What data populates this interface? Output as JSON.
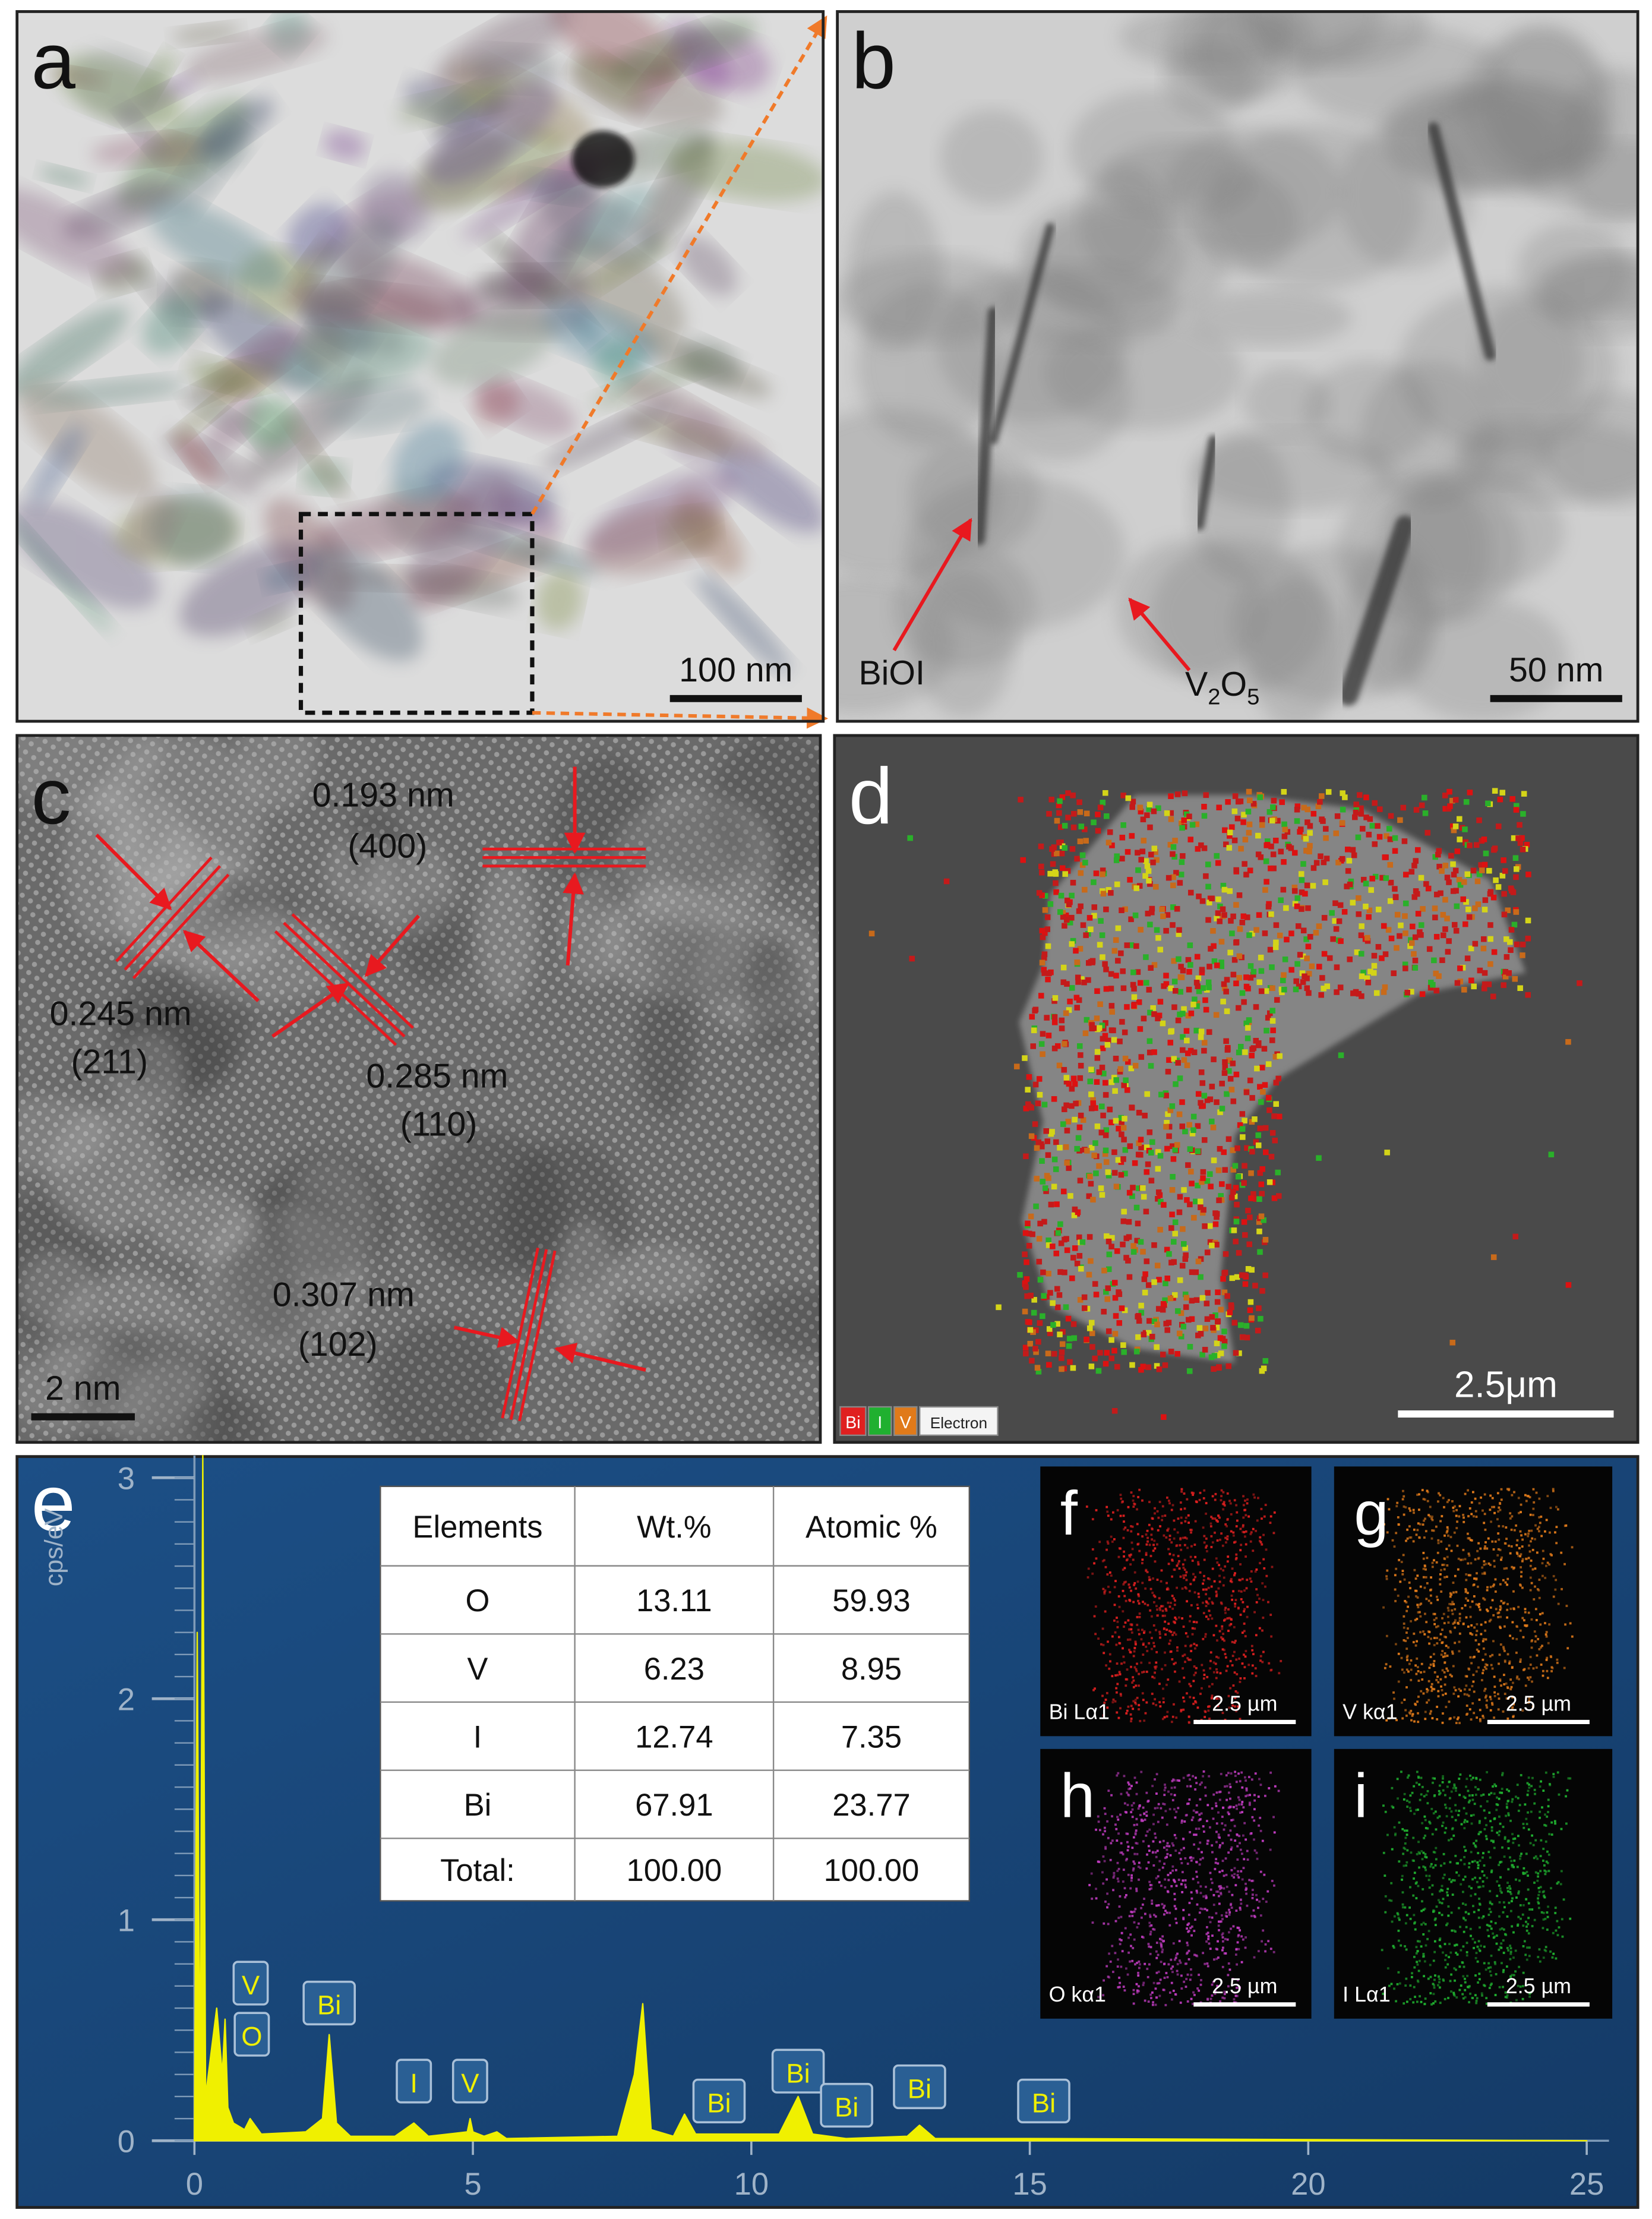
{
  "panels": {
    "a": {
      "label": "a",
      "scale_bar": "100 nm"
    },
    "b": {
      "label": "b",
      "scale_bar": "50 nm",
      "annotations": [
        "BiOI",
        "V2O5"
      ]
    },
    "c": {
      "label": "c",
      "scale_bar": "2 nm",
      "annotations": [
        "0.193 nm",
        "(400)",
        "0.245 nm",
        "(211)",
        "0.285 nm",
        "(110)",
        "0.307 nm",
        "(102)"
      ]
    },
    "d": {
      "label": "d",
      "scale_bar": "2.5μm",
      "legend": [
        "Bi",
        "I",
        "V",
        "Electron"
      ]
    },
    "e": {
      "label": "e"
    },
    "maps": [
      {
        "label": "f",
        "element": "Bi Lα1",
        "scale_bar": "2.5 µm",
        "color": "#e02020"
      },
      {
        "label": "g",
        "element": "V kα1",
        "scale_bar": "2.5 µm",
        "color": "#e07a1a"
      },
      {
        "label": "h",
        "element": "O kα1",
        "scale_bar": "2.5 µm",
        "color": "#c03cc0"
      },
      {
        "label": "i",
        "element": "I Lα1",
        "scale_bar": "2.5 µm",
        "color": "#20b030"
      }
    ]
  },
  "table": {
    "header": [
      "Elements",
      "Wt.%",
      "Atomic %"
    ],
    "rows": [
      [
        "O",
        "13.11",
        "59.93"
      ],
      [
        "V",
        "6.23",
        "8.95"
      ],
      [
        "I",
        "12.74",
        "7.35"
      ],
      [
        "Bi",
        "67.91",
        "23.77"
      ],
      [
        "Total:",
        "100.00",
        "100.00"
      ]
    ]
  },
  "chart_data": {
    "type": "area",
    "y_label": "cps/eV",
    "color": "#f0f000",
    "x": [
      0,
      0.05,
      0.1,
      0.15,
      0.2,
      0.3,
      0.4,
      0.5,
      0.55,
      0.6,
      0.7,
      0.9,
      1.0,
      1.2,
      2.0,
      2.3,
      2.42,
      2.55,
      2.8,
      3.6,
      3.94,
      4.2,
      4.9,
      4.95,
      5.0,
      5.2,
      5.43,
      5.6,
      7.6,
      7.9,
      8.05,
      8.2,
      8.6,
      8.8,
      9.0,
      10.5,
      10.84,
      11.1,
      11.7,
      12.8,
      13.02,
      13.3,
      15,
      25
    ],
    "values": [
      0,
      2.3,
      0.1,
      3.1,
      0.2,
      0.4,
      0.6,
      0.3,
      0.55,
      0.15,
      0.08,
      0.05,
      0.1,
      0.03,
      0.04,
      0.1,
      0.48,
      0.08,
      0.02,
      0.02,
      0.08,
      0.02,
      0.04,
      0.1,
      0.04,
      0.02,
      0.04,
      0.01,
      0.02,
      0.3,
      0.62,
      0.05,
      0.02,
      0.12,
      0.03,
      0.03,
      0.2,
      0.03,
      0.01,
      0.02,
      0.07,
      0.01,
      0.01,
      0
    ],
    "xlim": [
      0,
      25.4
    ],
    "ylim": [
      0,
      3.1
    ],
    "xticks": [
      0,
      5,
      10,
      15,
      20,
      25
    ],
    "yticks": [
      0,
      1,
      2,
      3
    ],
    "peak_labels": [
      {
        "label": "V",
        "x": 0.5
      },
      {
        "label": "O",
        "x": 0.52
      },
      {
        "label": "Bi",
        "x": 2.42
      },
      {
        "label": "I",
        "x": 3.94
      },
      {
        "label": "V",
        "x": 4.95
      },
      {
        "label": "Bi",
        "x": 9.42
      },
      {
        "label": "Bi",
        "x": 10.84
      },
      {
        "label": "Bi",
        "x": 11.71
      },
      {
        "label": "Bi",
        "x": 13.02
      },
      {
        "label": "Bi",
        "x": 15.25
      }
    ]
  }
}
